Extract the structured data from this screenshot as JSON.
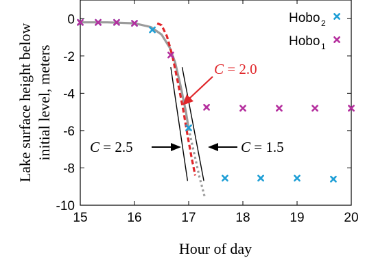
{
  "chart_data": {
    "type": "scatter",
    "xlabel": "Hour of day",
    "ylabel_lines": [
      "Lake surface height below",
      "initial level, meters"
    ],
    "xlim": [
      15,
      20
    ],
    "ylim": [
      -10,
      1
    ],
    "xticks": [
      {
        "v": 15,
        "label": "15"
      },
      {
        "v": 16,
        "label": "16"
      },
      {
        "v": 17,
        "label": "17"
      },
      {
        "v": 18,
        "label": "18"
      },
      {
        "v": 19,
        "label": "19"
      },
      {
        "v": 20,
        "label": "20"
      }
    ],
    "yticks": [
      {
        "v": 0,
        "label": "0"
      },
      {
        "v": -2,
        "label": "-2"
      },
      {
        "v": -4,
        "label": "-4"
      },
      {
        "v": -6,
        "label": "-6"
      },
      {
        "v": -8,
        "label": "-8"
      },
      {
        "v": -10,
        "label": "-10"
      }
    ],
    "colors": {
      "hobo2": "#1f9fd6",
      "hobo1": "#b52f9e",
      "model": "#e0262a",
      "fit": "#9b9b9b"
    },
    "legend": [
      {
        "key": "hobo2",
        "label": "Hobo",
        "sub": "2"
      },
      {
        "key": "hobo1",
        "label": "Hobo",
        "sub": "1"
      }
    ],
    "series": [
      {
        "key": "hobo2",
        "points": [
          [
            15.0,
            -0.2
          ],
          [
            15.33,
            -0.2
          ],
          [
            15.67,
            -0.2
          ],
          [
            16.0,
            -0.25
          ],
          [
            16.33,
            -0.6
          ],
          [
            17.0,
            -5.85
          ],
          [
            17.67,
            -8.55
          ],
          [
            18.33,
            -8.55
          ],
          [
            19.0,
            -8.55
          ],
          [
            19.67,
            -8.6
          ]
        ]
      },
      {
        "key": "hobo1",
        "points": [
          [
            15.0,
            -0.2
          ],
          [
            15.33,
            -0.2
          ],
          [
            15.67,
            -0.2
          ],
          [
            16.0,
            -0.25
          ],
          [
            16.67,
            -1.95
          ],
          [
            17.33,
            -4.75
          ],
          [
            18.0,
            -4.8
          ],
          [
            18.67,
            -4.8
          ],
          [
            19.33,
            -4.8
          ],
          [
            20.0,
            -4.8
          ]
        ]
      }
    ],
    "curves": {
      "fit_solid": [
        [
          15.0,
          -0.2
        ],
        [
          15.5,
          -0.2
        ],
        [
          16.0,
          -0.25
        ],
        [
          16.3,
          -0.45
        ],
        [
          16.5,
          -0.85
        ],
        [
          16.65,
          -1.55
        ],
        [
          16.75,
          -2.35
        ],
        [
          16.85,
          -3.6
        ],
        [
          16.95,
          -5.0
        ],
        [
          17.0,
          -5.9
        ]
      ],
      "fit_dotted": [
        [
          17.0,
          -5.9
        ],
        [
          17.1,
          -7.2
        ],
        [
          17.2,
          -8.5
        ],
        [
          17.3,
          -9.6
        ]
      ],
      "model_dashed": [
        [
          16.42,
          -0.25
        ],
        [
          16.5,
          -0.35
        ],
        [
          16.6,
          -0.95
        ],
        [
          16.7,
          -2.0
        ],
        [
          16.8,
          -3.4
        ],
        [
          16.9,
          -4.9
        ],
        [
          16.97,
          -6.1
        ],
        [
          17.05,
          -7.4
        ],
        [
          17.12,
          -8.4
        ]
      ],
      "bound_left": [
        [
          16.67,
          -2.6
        ],
        [
          16.98,
          -8.7
        ]
      ],
      "bound_right": [
        [
          16.88,
          -2.6
        ],
        [
          17.28,
          -8.7
        ]
      ]
    },
    "annotations": [
      {
        "id": "c20",
        "var": "C",
        "rest": " = 2.0",
        "color": "#e0262a"
      },
      {
        "id": "c25",
        "var": "C",
        "rest": " = 2.5",
        "color": "#000000"
      },
      {
        "id": "c15",
        "var": "C",
        "rest": " = 1.5",
        "color": "#000000"
      }
    ]
  }
}
